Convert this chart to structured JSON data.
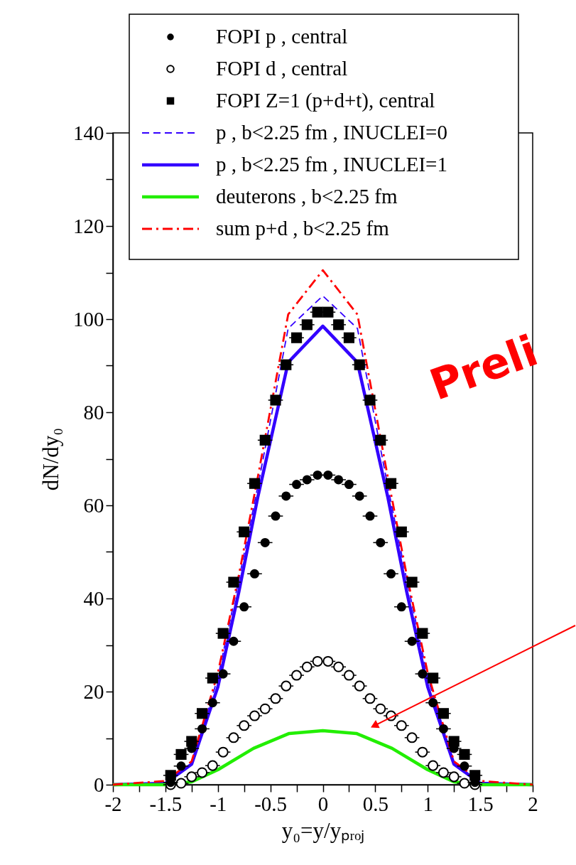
{
  "chart_data": {
    "type": "scatter",
    "xlabel": "y₀=y/yₚᵣₒⱼ",
    "ylabel": "dN/dy₀",
    "xlim": [
      -2,
      2
    ],
    "ylim": [
      0,
      140
    ],
    "xticks": [
      -2,
      {
        "value": -1.75,
        "label": null
      },
      -1.5,
      {
        "value": -1.25,
        "label": null
      },
      -1,
      {
        "value": -0.75,
        "label": null
      },
      -0.5,
      {
        "value": -0.25,
        "label": null
      },
      0,
      {
        "value": 0.25,
        "label": null
      },
      0.5,
      {
        "value": 0.75,
        "label": null
      },
      1,
      {
        "value": 1.25,
        "label": null
      },
      1.5,
      {
        "value": 1.75,
        "label": null
      },
      2
    ],
    "yticks": [
      0,
      {
        "value": 10,
        "label": null
      },
      20,
      {
        "value": 30,
        "label": null
      },
      40,
      {
        "value": 50,
        "label": null
      },
      60,
      {
        "value": 70,
        "label": null
      },
      80,
      {
        "value": 90,
        "label": null
      },
      100,
      {
        "value": 110,
        "label": null
      },
      120,
      {
        "value": 130,
        "label": null
      },
      140
    ],
    "grid": false,
    "legend": "top",
    "annotations": [
      "Preli"
    ],
    "series": [
      {
        "name": "FOPI p , central",
        "type": "scatter",
        "marker": "circle",
        "color": "#000000",
        "x": [
          -1.45,
          -1.35,
          -1.25,
          -1.15,
          -1.05,
          -0.95,
          -0.85,
          -0.75,
          -0.65,
          -0.55,
          -0.45,
          -0.35,
          -0.25,
          -0.15,
          -0.05,
          0.05,
          0.15,
          0.25,
          0.35,
          0.45,
          0.55,
          0.65,
          0.75,
          0.85,
          0.95,
          1.05,
          1.15,
          1.25,
          1.35,
          1.45
        ],
        "values": [
          0.5,
          4,
          7.8,
          12,
          17.6,
          23.8,
          30.8,
          38.2,
          45.3,
          52,
          57.7,
          62,
          64.5,
          65.5,
          66.5,
          66.5,
          65.5,
          64.5,
          62,
          57.7,
          52,
          45.3,
          38.2,
          30.8,
          23.8,
          17.6,
          12,
          7.8,
          4,
          0.5
        ],
        "xerrors": [
          0.07,
          0.07,
          0.07,
          0.07,
          0.07,
          0.07,
          0.07,
          0.07,
          0.07,
          0.07,
          0.07,
          0.07,
          0.07,
          0.07,
          0.07,
          0.07,
          0.07,
          0.07,
          0.07,
          0.07,
          0.07,
          0.07,
          0.07,
          0.07,
          0.07,
          0.07,
          0.07,
          0.07,
          0.07,
          0.07
        ]
      },
      {
        "name": "FOPI d , central",
        "type": "scatter",
        "marker": "circle",
        "color": "#000000",
        "x": [
          -1.45,
          -1.35,
          -1.25,
          -1.15,
          -1.05,
          -0.95,
          -0.85,
          -0.75,
          -0.65,
          -0.55,
          -0.45,
          -0.35,
          -0.25,
          -0.15,
          -0.05,
          0.05,
          0.15,
          0.25,
          0.35,
          0.45,
          0.55,
          0.65,
          0.75,
          0.85,
          0.95,
          1.05,
          1.15,
          1.25,
          1.35,
          1.45
        ],
        "values": [
          0,
          0.3,
          1.7,
          2.6,
          4.1,
          7,
          10.1,
          12.7,
          14.8,
          16.3,
          18.5,
          21.2,
          23.5,
          25.3,
          26.5,
          26.5,
          25.3,
          23.5,
          21.2,
          18.5,
          16.3,
          14.8,
          12.7,
          10.1,
          7,
          4.1,
          2.6,
          1.7,
          0.3,
          0
        ],
        "xerrors": [
          0.07,
          0.07,
          0.07,
          0.07,
          0.07,
          0.07,
          0.07,
          0.07,
          0.07,
          0.07,
          0.07,
          0.07,
          0.07,
          0.07,
          0.07,
          0.07,
          0.07,
          0.07,
          0.07,
          0.07,
          0.07,
          0.07,
          0.07,
          0.07,
          0.07,
          0.07,
          0.07,
          0.07,
          0.07,
          0.07
        ]
      },
      {
        "name": "FOPI Z=1 (p+d+t), central",
        "type": "scatter",
        "marker": "square",
        "color": "#000000",
        "x": [
          -1.45,
          -1.35,
          -1.25,
          -1.15,
          -1.05,
          -0.95,
          -0.85,
          -0.75,
          -0.65,
          -0.55,
          -0.45,
          -0.35,
          -0.25,
          -0.15,
          -0.05,
          0.05,
          0.15,
          0.25,
          0.35,
          0.45,
          0.55,
          0.65,
          0.75,
          0.85,
          0.95,
          1.05,
          1.15,
          1.25,
          1.35,
          1.45
        ],
        "values": [
          2,
          6.5,
          9.3,
          15.3,
          22.9,
          32.5,
          43.5,
          54.3,
          64.7,
          74,
          82.6,
          90.2,
          96,
          98.8,
          101.5,
          101.5,
          98.8,
          96,
          90.2,
          82.6,
          74,
          64.7,
          54.3,
          43.5,
          32.5,
          22.9,
          15.3,
          9.3,
          6.5,
          2
        ],
        "xerrors": [
          0.07,
          0.07,
          0.07,
          0.07,
          0.07,
          0.07,
          0.07,
          0.07,
          0.07,
          0.07,
          0.07,
          0.07,
          0.07,
          0.07,
          0.07,
          0.07,
          0.07,
          0.07,
          0.07,
          0.07,
          0.07,
          0.07,
          0.07,
          0.07,
          0.07,
          0.07,
          0.07,
          0.07,
          0.07,
          0.07
        ]
      },
      {
        "name": "p , b<2.25 fm , INUCLEI=0",
        "type": "line",
        "line_style": "dashed",
        "color": "#3300ff",
        "x": [
          -2,
          -1.5,
          -1.25,
          -1,
          -0.8,
          -0.62,
          -0.33,
          0,
          0.33,
          0.62,
          0.8,
          1,
          1.25,
          1.5,
          2
        ],
        "values": [
          0,
          0.3,
          4.6,
          23,
          44,
          64,
          98,
          105,
          98,
          64,
          44,
          23,
          4.6,
          0.3,
          0
        ]
      },
      {
        "name": "p , b<2.25 fm , INUCLEI=1",
        "type": "line",
        "line_style": "solid",
        "color": "#3300ff",
        "x": [
          -2,
          -1.5,
          -1.25,
          -1,
          -0.8,
          -0.62,
          -0.33,
          0,
          0.33,
          0.62,
          0.8,
          1,
          1.25,
          1.5,
          2
        ],
        "values": [
          0,
          0.3,
          4.4,
          21,
          41.4,
          61.7,
          90.7,
          98.5,
          90.7,
          61.7,
          41.4,
          21,
          4.4,
          0.3,
          0
        ]
      },
      {
        "name": "deuterons , b<2.25 fm",
        "type": "line",
        "line_style": "solid",
        "color": "#22ee00",
        "x": [
          -2,
          -1.5,
          -1.25,
          -1,
          -0.66,
          -0.32,
          0,
          0.32,
          0.66,
          1,
          1.25,
          1.5,
          2
        ],
        "values": [
          0,
          0,
          0.6,
          3.2,
          7.8,
          11,
          11.6,
          11,
          7.8,
          3.2,
          0.6,
          0,
          0
        ]
      },
      {
        "name": "sum p+d , b<2.25 fm",
        "type": "line",
        "line_style": "dashdot",
        "color": "#ff0000",
        "x": [
          -2,
          -1.5,
          -1.25,
          -1,
          -0.8,
          -0.62,
          -0.33,
          0,
          0.33,
          0.62,
          0.8,
          1,
          1.25,
          1.5,
          2
        ],
        "values": [
          0,
          0.8,
          5,
          24,
          45,
          66,
          101,
          110.5,
          101,
          66,
          45,
          24,
          5,
          0.8,
          0
        ]
      }
    ]
  }
}
